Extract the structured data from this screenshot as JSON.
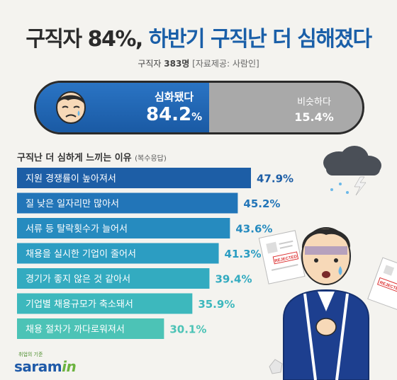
{
  "header": {
    "title_part1": "구직자 84%,",
    "title_part2": " 하반기 구직난 더 심해졌다",
    "sample_label": "구직자 ",
    "sample_count": "383명",
    "source": " [자료제공: 사람인]"
  },
  "summary": {
    "main_label": "심화됐다",
    "main_value": "84.2",
    "main_unit": "%",
    "main_fraction": 0.842,
    "minor_label": "비슷하다",
    "minor_value": "15.4%"
  },
  "illustration": {
    "paper_stamp": "REJECTED"
  },
  "chart_data": {
    "type": "bar",
    "title": "구직난 더 심하게 느끼는 이유",
    "note": "(복수응답)",
    "categories": [
      "지원 경쟁률이 높아져서",
      "질 낮은 일자리만 많아서",
      "서류 등 탈락횟수가 늘어서",
      "채용을 실시한 기업이 줄어서",
      "경기가 좋지 않은 것 같아서",
      "기업별 채용규모가 축소돼서",
      "채용 절차가 까다로워져서"
    ],
    "values": [
      47.9,
      45.2,
      43.6,
      41.3,
      39.4,
      35.9,
      30.1
    ],
    "value_labels": [
      "47.9%",
      "45.2%",
      "43.6%",
      "41.3%",
      "39.4%",
      "35.9%",
      "30.1%"
    ],
    "colors": [
      "#1d5ea6",
      "#2275b8",
      "#268bbf",
      "#2c9dc2",
      "#33abc0",
      "#3db8bd",
      "#4cc3b6"
    ],
    "value_colors": [
      "#1d5ea6",
      "#2275b8",
      "#268bbf",
      "#2c9dc2",
      "#33abc0",
      "#3db8bd",
      "#4cc3b6"
    ]
  },
  "logo": {
    "tagline": "취업의 기준",
    "name_main": "saram",
    "name_accent": "in"
  },
  "colors": {
    "accent": "#1a5fa8",
    "minor": "#a9a9a9"
  }
}
